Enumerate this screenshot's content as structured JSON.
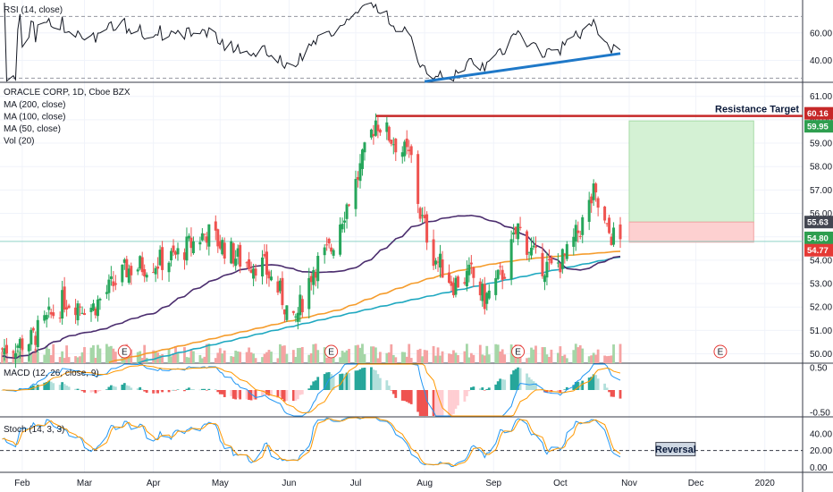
{
  "chart_data": [
    {
      "type": "line",
      "pane": "rsi",
      "title": "RSI (14, close)",
      "y_ticks": [
        40.0,
        60.0
      ],
      "ylim": [
        24,
        84
      ],
      "series": [],
      "trendline": {
        "from": [
          "2019-08-01",
          24.6
        ],
        "to": [
          "2019-10-28",
          45.0
        ],
        "color": "#1e78c8"
      }
    },
    {
      "type": "candlestick",
      "pane": "price",
      "title": "ORACLE CORP, 1D, Cboe BZX",
      "legend": [
        "MA (200, close)",
        "MA (100, close)",
        "MA (50, close)",
        "Vol (20)"
      ],
      "y_ticks": [
        50.0,
        51.0,
        52.0,
        53.0,
        54.0,
        55.0,
        56.0,
        57.0,
        58.0,
        59.0,
        60.0,
        61.0
      ],
      "ylim": [
        49.6,
        61.6
      ],
      "x_ticks": [
        "Feb",
        "Mar",
        "Apr",
        "May",
        "Jun",
        "Jul",
        "Aug",
        "Sep",
        "Oct",
        "Nov",
        "Dec",
        "2020"
      ],
      "price_tags": [
        {
          "value": "60.16",
          "color": "#c62828"
        },
        {
          "value": "59.95",
          "color": "#2e9e4f"
        },
        {
          "value": "55.63",
          "color": "#434651"
        },
        {
          "value": "54.80",
          "color": "#2e9e4f"
        },
        {
          "value": "54.77",
          "color": "#e53935"
        }
      ],
      "resistance": {
        "value": 60.16,
        "label": "Resistance Target",
        "color": "#c62828"
      },
      "target_box": {
        "from": "2019-11-01",
        "to": "2019-12-27",
        "profit_top": 59.95,
        "entry": 55.63,
        "stop": 54.77
      },
      "earnings_markers": [
        "2019-03-19",
        "2019-06-20",
        "2019-09-12",
        "2019-12-12"
      ],
      "earnings_label": "E",
      "moving_averages": [
        {
          "name": "MA (200, close)",
          "color": "#1fa8c0"
        },
        {
          "name": "MA (100, close)",
          "color": "#f59c2c"
        },
        {
          "name": "MA (50, close)",
          "color": "#4b2d6e"
        }
      ]
    },
    {
      "type": "bar",
      "pane": "macd",
      "title": "MACD (12, 26, close, 9)",
      "y_ticks": [
        -0.5,
        0.5
      ],
      "ylim": [
        -0.6,
        0.6
      ]
    },
    {
      "type": "line",
      "pane": "stoch",
      "title": "Stoch (14, 3, 3)",
      "y_ticks": [
        0.0,
        20.0,
        40.0
      ],
      "ylim": [
        -6,
        60
      ],
      "annotation": "Reversal",
      "level": 20
    }
  ]
}
